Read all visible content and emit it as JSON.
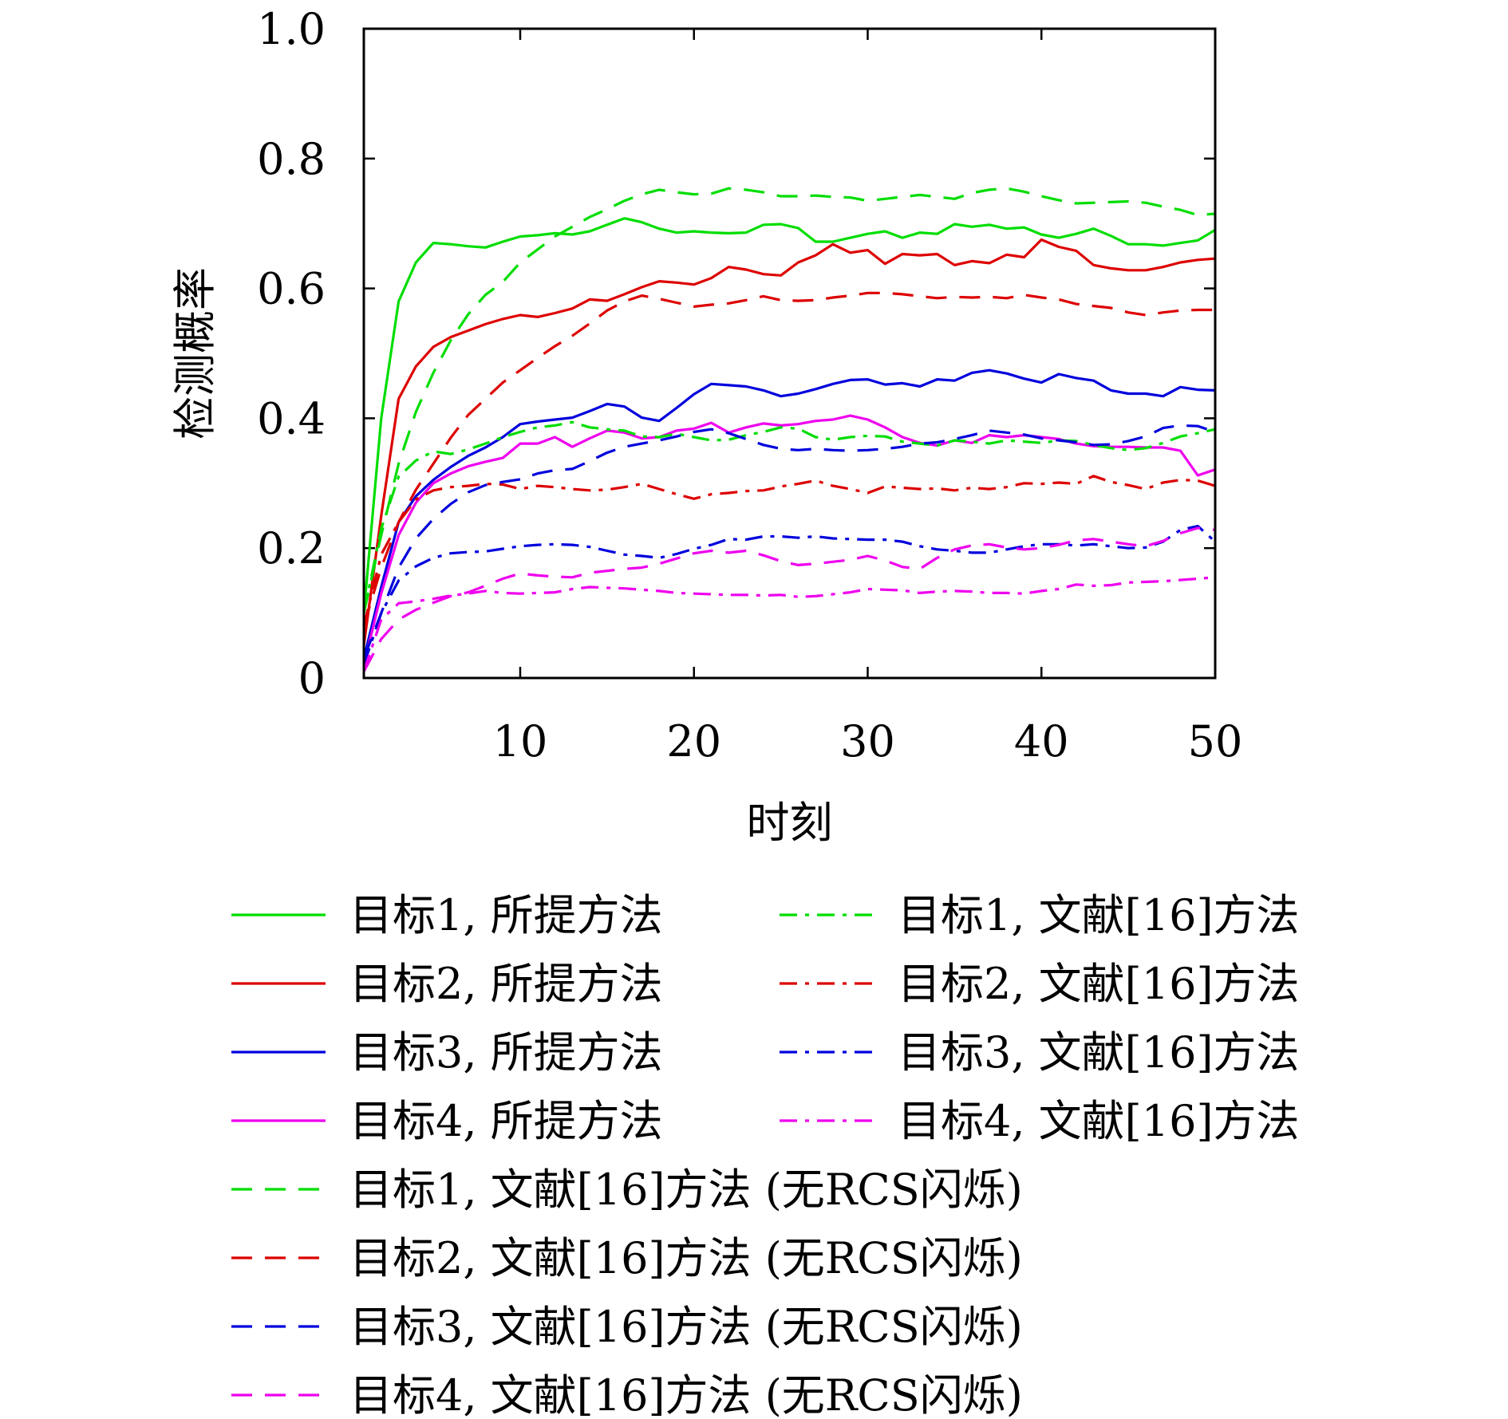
{
  "chart_data": {
    "type": "line",
    "xlabel": "时刻",
    "ylabel": "检测概率",
    "xlim": [
      1,
      50
    ],
    "ylim": [
      0,
      1.0
    ],
    "xticks": [
      10,
      20,
      30,
      40,
      50
    ],
    "yticks": [
      0,
      0.2,
      0.4,
      0.6,
      0.8,
      1.0
    ],
    "ytick_labels": [
      "0",
      "0.2",
      "0.4",
      "0.6",
      "0.8",
      "1.0"
    ],
    "grid": false,
    "legend_position": "bottom",
    "x": [
      1,
      2,
      3,
      4,
      5,
      6,
      7,
      8,
      9,
      10,
      11,
      12,
      13,
      14,
      15,
      16,
      17,
      18,
      19,
      20,
      21,
      22,
      23,
      24,
      25,
      26,
      27,
      28,
      29,
      30,
      31,
      32,
      33,
      34,
      35,
      36,
      37,
      38,
      39,
      40,
      41,
      42,
      43,
      44,
      45,
      46,
      47,
      48,
      49,
      50
    ],
    "series": [
      {
        "name": "目标1, 所提方法",
        "color": "#00dd00",
        "dash": "solid",
        "values": [
          0.1,
          0.4,
          0.58,
          0.64,
          0.67,
          0.668,
          0.665,
          0.663,
          0.672,
          0.68,
          0.682,
          0.685,
          0.683,
          0.688,
          0.698,
          0.708,
          0.702,
          0.692,
          0.686,
          0.688,
          0.686,
          0.685,
          0.686,
          0.698,
          0.699,
          0.693,
          0.672,
          0.672,
          0.678,
          0.684,
          0.688,
          0.678,
          0.686,
          0.684,
          0.699,
          0.695,
          0.698,
          0.692,
          0.694,
          0.683,
          0.678,
          0.684,
          0.692,
          0.681,
          0.668,
          0.668,
          0.666,
          0.67,
          0.674,
          0.69
        ]
      },
      {
        "name": "目标2, 所提方法",
        "color": "#dd0000",
        "dash": "solid",
        "values": [
          0.05,
          0.25,
          0.43,
          0.48,
          0.51,
          0.525,
          0.535,
          0.545,
          0.553,
          0.559,
          0.556,
          0.562,
          0.569,
          0.583,
          0.581,
          0.591,
          0.602,
          0.611,
          0.609,
          0.606,
          0.616,
          0.633,
          0.629,
          0.622,
          0.62,
          0.64,
          0.651,
          0.668,
          0.655,
          0.659,
          0.638,
          0.653,
          0.651,
          0.653,
          0.636,
          0.642,
          0.639,
          0.652,
          0.648,
          0.675,
          0.664,
          0.658,
          0.636,
          0.631,
          0.628,
          0.628,
          0.633,
          0.64,
          0.644,
          0.646
        ]
      },
      {
        "name": "目标3, 所提方法",
        "color": "#0000dd",
        "dash": "solid",
        "values": [
          0.03,
          0.14,
          0.24,
          0.28,
          0.305,
          0.325,
          0.342,
          0.355,
          0.371,
          0.391,
          0.395,
          0.398,
          0.401,
          0.411,
          0.422,
          0.418,
          0.401,
          0.396,
          0.416,
          0.437,
          0.453,
          0.451,
          0.449,
          0.443,
          0.434,
          0.438,
          0.445,
          0.453,
          0.459,
          0.46,
          0.452,
          0.454,
          0.449,
          0.46,
          0.458,
          0.47,
          0.474,
          0.469,
          0.461,
          0.455,
          0.468,
          0.462,
          0.458,
          0.443,
          0.438,
          0.438,
          0.434,
          0.448,
          0.444,
          0.443
        ]
      },
      {
        "name": "目标4, 所提方法",
        "color": "#ee00ee",
        "dash": "solid",
        "values": [
          0.02,
          0.13,
          0.22,
          0.27,
          0.3,
          0.315,
          0.326,
          0.333,
          0.339,
          0.361,
          0.361,
          0.371,
          0.356,
          0.369,
          0.381,
          0.378,
          0.369,
          0.371,
          0.381,
          0.384,
          0.393,
          0.378,
          0.386,
          0.392,
          0.389,
          0.391,
          0.396,
          0.398,
          0.404,
          0.398,
          0.386,
          0.371,
          0.362,
          0.358,
          0.366,
          0.362,
          0.374,
          0.371,
          0.374,
          0.371,
          0.368,
          0.361,
          0.357,
          0.356,
          0.356,
          0.355,
          0.355,
          0.35,
          0.312,
          0.321
        ]
      },
      {
        "name": "目标1, 文献[16]方法",
        "color": "#00dd00",
        "dash": "dashdot",
        "values": [
          0.1,
          0.23,
          0.31,
          0.335,
          0.349,
          0.345,
          0.352,
          0.361,
          0.371,
          0.379,
          0.386,
          0.389,
          0.394,
          0.386,
          0.383,
          0.381,
          0.372,
          0.371,
          0.376,
          0.371,
          0.366,
          0.367,
          0.374,
          0.379,
          0.386,
          0.384,
          0.371,
          0.367,
          0.371,
          0.373,
          0.372,
          0.364,
          0.361,
          0.358,
          0.366,
          0.364,
          0.361,
          0.366,
          0.364,
          0.362,
          0.366,
          0.365,
          0.359,
          0.354,
          0.351,
          0.354,
          0.362,
          0.372,
          0.377,
          0.383
        ]
      },
      {
        "name": "目标2, 文献[16]方法",
        "color": "#dd0000",
        "dash": "dashdot",
        "values": [
          0.08,
          0.19,
          0.24,
          0.275,
          0.289,
          0.294,
          0.296,
          0.299,
          0.298,
          0.291,
          0.296,
          0.294,
          0.291,
          0.289,
          0.29,
          0.294,
          0.299,
          0.291,
          0.283,
          0.276,
          0.283,
          0.285,
          0.288,
          0.289,
          0.295,
          0.299,
          0.304,
          0.296,
          0.291,
          0.285,
          0.295,
          0.293,
          0.291,
          0.292,
          0.289,
          0.293,
          0.291,
          0.294,
          0.3,
          0.299,
          0.301,
          0.299,
          0.311,
          0.302,
          0.297,
          0.291,
          0.301,
          0.305,
          0.304,
          0.296
        ]
      },
      {
        "name": "目标3, 文献[16]方法",
        "color": "#0000dd",
        "dash": "dashdot",
        "values": [
          0.02,
          0.1,
          0.15,
          0.172,
          0.185,
          0.192,
          0.194,
          0.195,
          0.199,
          0.203,
          0.205,
          0.206,
          0.205,
          0.202,
          0.196,
          0.19,
          0.188,
          0.185,
          0.191,
          0.199,
          0.205,
          0.214,
          0.213,
          0.218,
          0.218,
          0.216,
          0.218,
          0.215,
          0.214,
          0.213,
          0.213,
          0.21,
          0.203,
          0.198,
          0.196,
          0.193,
          0.193,
          0.198,
          0.203,
          0.206,
          0.206,
          0.204,
          0.206,
          0.203,
          0.2,
          0.201,
          0.21,
          0.228,
          0.234,
          0.21
        ]
      },
      {
        "name": "目标4, 文献[16]方法",
        "color": "#ee00ee",
        "dash": "dashdot",
        "values": [
          0.01,
          0.09,
          0.115,
          0.118,
          0.122,
          0.127,
          0.13,
          0.134,
          0.131,
          0.13,
          0.131,
          0.132,
          0.137,
          0.14,
          0.139,
          0.138,
          0.136,
          0.134,
          0.131,
          0.13,
          0.129,
          0.128,
          0.128,
          0.127,
          0.128,
          0.125,
          0.126,
          0.129,
          0.132,
          0.137,
          0.136,
          0.135,
          0.131,
          0.133,
          0.134,
          0.133,
          0.131,
          0.131,
          0.13,
          0.134,
          0.137,
          0.144,
          0.142,
          0.143,
          0.147,
          0.148,
          0.149,
          0.151,
          0.153,
          0.155
        ]
      },
      {
        "name": "目标1, 文献[16]方法 (无RCS闪烁)",
        "color": "#00dd00",
        "dash": "dashed",
        "values": [
          0.1,
          0.22,
          0.33,
          0.41,
          0.47,
          0.52,
          0.56,
          0.59,
          0.61,
          0.64,
          0.66,
          0.68,
          0.695,
          0.71,
          0.722,
          0.735,
          0.745,
          0.752,
          0.748,
          0.745,
          0.746,
          0.754,
          0.752,
          0.748,
          0.742,
          0.742,
          0.743,
          0.741,
          0.74,
          0.735,
          0.738,
          0.741,
          0.744,
          0.741,
          0.738,
          0.747,
          0.752,
          0.754,
          0.749,
          0.742,
          0.736,
          0.731,
          0.732,
          0.733,
          0.734,
          0.732,
          0.726,
          0.721,
          0.713,
          0.715
        ]
      },
      {
        "name": "目标2, 文献[16]方法 (无RCS闪烁)",
        "color": "#dd0000",
        "dash": "dashed",
        "values": [
          0.08,
          0.17,
          0.24,
          0.29,
          0.33,
          0.37,
          0.405,
          0.43,
          0.455,
          0.474,
          0.493,
          0.511,
          0.527,
          0.546,
          0.566,
          0.58,
          0.589,
          0.584,
          0.578,
          0.572,
          0.575,
          0.577,
          0.582,
          0.588,
          0.582,
          0.581,
          0.582,
          0.586,
          0.589,
          0.593,
          0.593,
          0.591,
          0.588,
          0.585,
          0.587,
          0.586,
          0.587,
          0.585,
          0.59,
          0.586,
          0.583,
          0.576,
          0.573,
          0.57,
          0.563,
          0.559,
          0.563,
          0.566,
          0.567,
          0.567
        ]
      },
      {
        "name": "目标3, 文献[16]方法 (无RCS闪烁)",
        "color": "#0000dd",
        "dash": "dashed",
        "values": [
          0.03,
          0.1,
          0.17,
          0.215,
          0.245,
          0.268,
          0.286,
          0.297,
          0.302,
          0.306,
          0.315,
          0.32,
          0.322,
          0.334,
          0.347,
          0.356,
          0.361,
          0.366,
          0.372,
          0.379,
          0.383,
          0.377,
          0.368,
          0.359,
          0.353,
          0.351,
          0.353,
          0.351,
          0.35,
          0.351,
          0.353,
          0.356,
          0.361,
          0.363,
          0.368,
          0.374,
          0.381,
          0.378,
          0.375,
          0.369,
          0.366,
          0.363,
          0.359,
          0.36,
          0.365,
          0.372,
          0.385,
          0.389,
          0.388,
          0.379
        ]
      },
      {
        "name": "目标4, 文献[16]方法 (无RCS闪烁)",
        "color": "#ee00ee",
        "dash": "dashed",
        "values": [
          0.01,
          0.06,
          0.09,
          0.105,
          0.116,
          0.126,
          0.132,
          0.142,
          0.153,
          0.161,
          0.158,
          0.156,
          0.155,
          0.162,
          0.165,
          0.168,
          0.17,
          0.176,
          0.184,
          0.192,
          0.196,
          0.193,
          0.196,
          0.189,
          0.18,
          0.174,
          0.176,
          0.179,
          0.182,
          0.188,
          0.181,
          0.171,
          0.168,
          0.185,
          0.198,
          0.204,
          0.206,
          0.201,
          0.198,
          0.2,
          0.205,
          0.212,
          0.214,
          0.21,
          0.206,
          0.203,
          0.211,
          0.223,
          0.231,
          0.228
        ]
      }
    ]
  }
}
